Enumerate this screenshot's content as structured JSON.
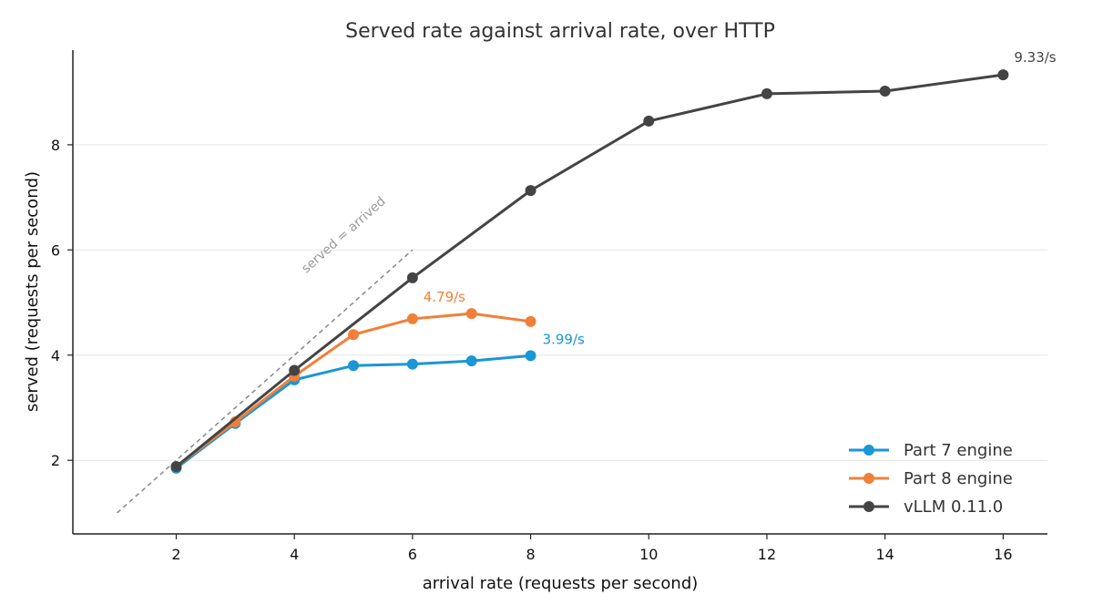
{
  "chart_data": {
    "type": "line",
    "title": "Served rate against arrival rate, over HTTP",
    "xlabel": "arrival rate (requests per second)",
    "ylabel": "served (requests per second)",
    "xlim": [
      0.25,
      16.75
    ],
    "ylim": [
      0.6,
      9.8
    ],
    "xticks": [
      2,
      4,
      6,
      8,
      10,
      12,
      14,
      16
    ],
    "yticks": [
      2,
      4,
      6,
      8
    ],
    "grid": "horizontal",
    "legend_position": "lower-right",
    "series": [
      {
        "name": "Part 7 engine",
        "color": "#1b96d6",
        "x": [
          2,
          3,
          4,
          5,
          6,
          7,
          8
        ],
        "y": [
          1.85,
          2.7,
          3.53,
          3.8,
          3.83,
          3.89,
          3.99
        ]
      },
      {
        "name": "Part 8 engine",
        "color": "#f08039",
        "x": [
          2,
          3,
          4,
          5,
          6,
          7,
          8
        ],
        "y": [
          1.88,
          2.73,
          3.6,
          4.39,
          4.69,
          4.79,
          4.64
        ]
      },
      {
        "name": "vLLM 0.11.0",
        "color": "#444444",
        "x": [
          2,
          4,
          6,
          8,
          10,
          12,
          14,
          16
        ],
        "y": [
          1.88,
          3.71,
          5.47,
          7.13,
          8.45,
          8.97,
          9.02,
          9.33
        ]
      }
    ],
    "reference_line": {
      "label": "served = arrived",
      "x": [
        1,
        6
      ],
      "y": [
        1,
        6
      ],
      "color": "#888888",
      "style": "dashed"
    },
    "annotations": [
      {
        "text": "3.99/s",
        "x": 8,
        "y": 3.99,
        "color": "#1b96d6"
      },
      {
        "text": "4.79/s",
        "x": 7,
        "y": 4.79,
        "color": "#f08039"
      },
      {
        "text": "9.33/s",
        "x": 16,
        "y": 9.33,
        "color": "#444444"
      }
    ]
  }
}
